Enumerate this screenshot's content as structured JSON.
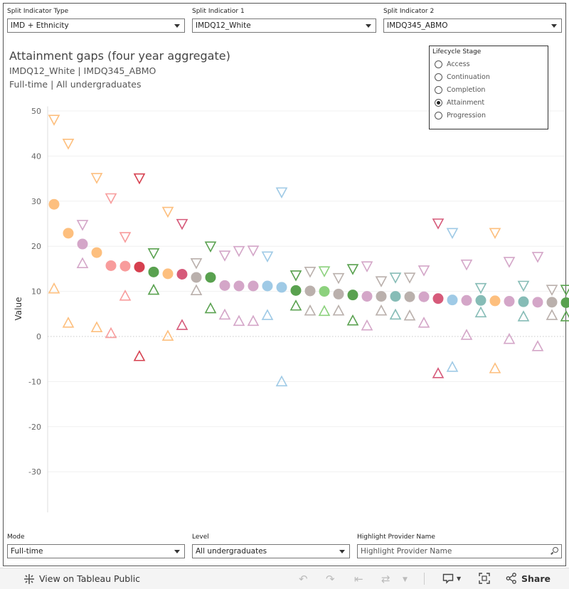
{
  "filters": {
    "split_type": {
      "label": "Split Indicator Type",
      "value": "IMD + Ethnicity"
    },
    "split1": {
      "label": "Split Indicatior 1",
      "value": "IMDQ12_White"
    },
    "split2": {
      "label": "Split Indicator 2",
      "value": "IMDQ345_ABMO"
    },
    "mode": {
      "label": "Mode",
      "value": "Full-time"
    },
    "level": {
      "label": "Level",
      "value": "All undergraduates"
    },
    "highlight": {
      "label": "Highlight Provider Name",
      "placeholder": "Highlight Provider Name"
    }
  },
  "titles": {
    "title": "Attainment gaps (four year aggregate)",
    "subtitle1": "IMDQ12_White | IMDQ345_ABMO",
    "subtitle2": "Full-time | All undergraduates"
  },
  "lifecycle": {
    "title": "Lifecycle Stage",
    "options": [
      "Access",
      "Continuation",
      "Completion",
      "Attainment",
      "Progression"
    ],
    "selected": "Attainment"
  },
  "toolbar": {
    "view_label": "View on Tableau Public",
    "share_label": "Share"
  },
  "chart_data": {
    "type": "scatter",
    "ylabel": "Value",
    "ylim": [
      -39,
      51
    ],
    "yticks": [
      50,
      40,
      30,
      20,
      10,
      0,
      -10,
      -20,
      -30
    ],
    "zero_line": "dotted",
    "grid": true,
    "markers": {
      "circle": "value",
      "triangle-down": "upper bound",
      "triangle-up": "lower bound"
    },
    "points": [
      {
        "value": 29.3,
        "upper": 48.0,
        "lower": 10.7,
        "color": "#fdbf7e"
      },
      {
        "value": 22.9,
        "upper": 42.7,
        "lower": 3.1,
        "color": "#fdbf7e"
      },
      {
        "value": 20.5,
        "upper": 24.7,
        "lower": 16.3,
        "color": "#d4a6c8"
      },
      {
        "value": 18.6,
        "upper": 35.1,
        "lower": 2.1,
        "color": "#fdbf7e"
      },
      {
        "value": 15.7,
        "upper": 30.6,
        "lower": 0.8,
        "color": "#f89c9c"
      },
      {
        "value": 15.6,
        "upper": 22.0,
        "lower": 9.1,
        "color": "#f89c9c"
      },
      {
        "value": 15.4,
        "upper": 35.0,
        "lower": -4.3,
        "color": "#d6404f"
      },
      {
        "value": 14.3,
        "upper": 18.4,
        "lower": 10.4,
        "color": "#59a14f"
      },
      {
        "value": 13.9,
        "upper": 27.6,
        "lower": 0.2,
        "color": "#fdbf7e"
      },
      {
        "value": 13.8,
        "upper": 24.9,
        "lower": 2.6,
        "color": "#d65a7a"
      },
      {
        "value": 13.1,
        "upper": 16.2,
        "lower": 10.3,
        "color": "#bab0ac"
      },
      {
        "value": 13.1,
        "upper": 19.9,
        "lower": 6.3,
        "color": "#59a14f"
      },
      {
        "value": 11.3,
        "upper": 17.9,
        "lower": 4.9,
        "color": "#d4a6c8"
      },
      {
        "value": 11.2,
        "upper": 18.9,
        "lower": 3.5,
        "color": "#d4a6c8"
      },
      {
        "value": 11.2,
        "upper": 19.0,
        "lower": 3.5,
        "color": "#d4a6c8"
      },
      {
        "value": 11.2,
        "upper": 17.7,
        "lower": 4.8,
        "color": "#9fcae6"
      },
      {
        "value": 10.9,
        "upper": 31.9,
        "lower": -9.9,
        "color": "#9fcae6"
      },
      {
        "value": 10.2,
        "upper": 13.5,
        "lower": 6.9,
        "color": "#59a14f"
      },
      {
        "value": 10.1,
        "upper": 14.3,
        "lower": 5.8,
        "color": "#bab0ac"
      },
      {
        "value": 10.0,
        "upper": 14.4,
        "lower": 5.7,
        "color": "#8cd17d"
      },
      {
        "value": 9.4,
        "upper": 12.9,
        "lower": 5.8,
        "color": "#bab0ac"
      },
      {
        "value": 9.2,
        "upper": 14.9,
        "lower": 3.6,
        "color": "#59a14f"
      },
      {
        "value": 8.9,
        "upper": 15.5,
        "lower": 2.5,
        "color": "#d4a6c8"
      },
      {
        "value": 8.9,
        "upper": 12.2,
        "lower": 5.8,
        "color": "#bab0ac"
      },
      {
        "value": 8.9,
        "upper": 13.0,
        "lower": 4.9,
        "color": "#86bcb6"
      },
      {
        "value": 8.8,
        "upper": 13.0,
        "lower": 4.7,
        "color": "#bab0ac"
      },
      {
        "value": 8.8,
        "upper": 14.6,
        "lower": 3.1,
        "color": "#d4a6c8"
      },
      {
        "value": 8.4,
        "upper": 25.0,
        "lower": -8.1,
        "color": "#d65a7a"
      },
      {
        "value": 8.1,
        "upper": 22.9,
        "lower": -6.7,
        "color": "#9fcae6"
      },
      {
        "value": 8.0,
        "upper": 15.9,
        "lower": 0.4,
        "color": "#d4a6c8"
      },
      {
        "value": 8.0,
        "upper": 10.7,
        "lower": 5.4,
        "color": "#86bcb6"
      },
      {
        "value": 7.9,
        "upper": 22.9,
        "lower": -7.0,
        "color": "#fdbf7e"
      },
      {
        "value": 7.8,
        "upper": 16.5,
        "lower": -0.5,
        "color": "#d4a6c8"
      },
      {
        "value": 7.7,
        "upper": 11.2,
        "lower": 4.5,
        "color": "#86bcb6"
      },
      {
        "value": 7.6,
        "upper": 17.6,
        "lower": -2.1,
        "color": "#d4a6c8"
      },
      {
        "value": 7.6,
        "upper": 10.3,
        "lower": 4.8,
        "color": "#bab0ac"
      },
      {
        "value": 7.5,
        "upper": 10.3,
        "lower": 4.5,
        "color": "#59a14f"
      }
    ]
  }
}
